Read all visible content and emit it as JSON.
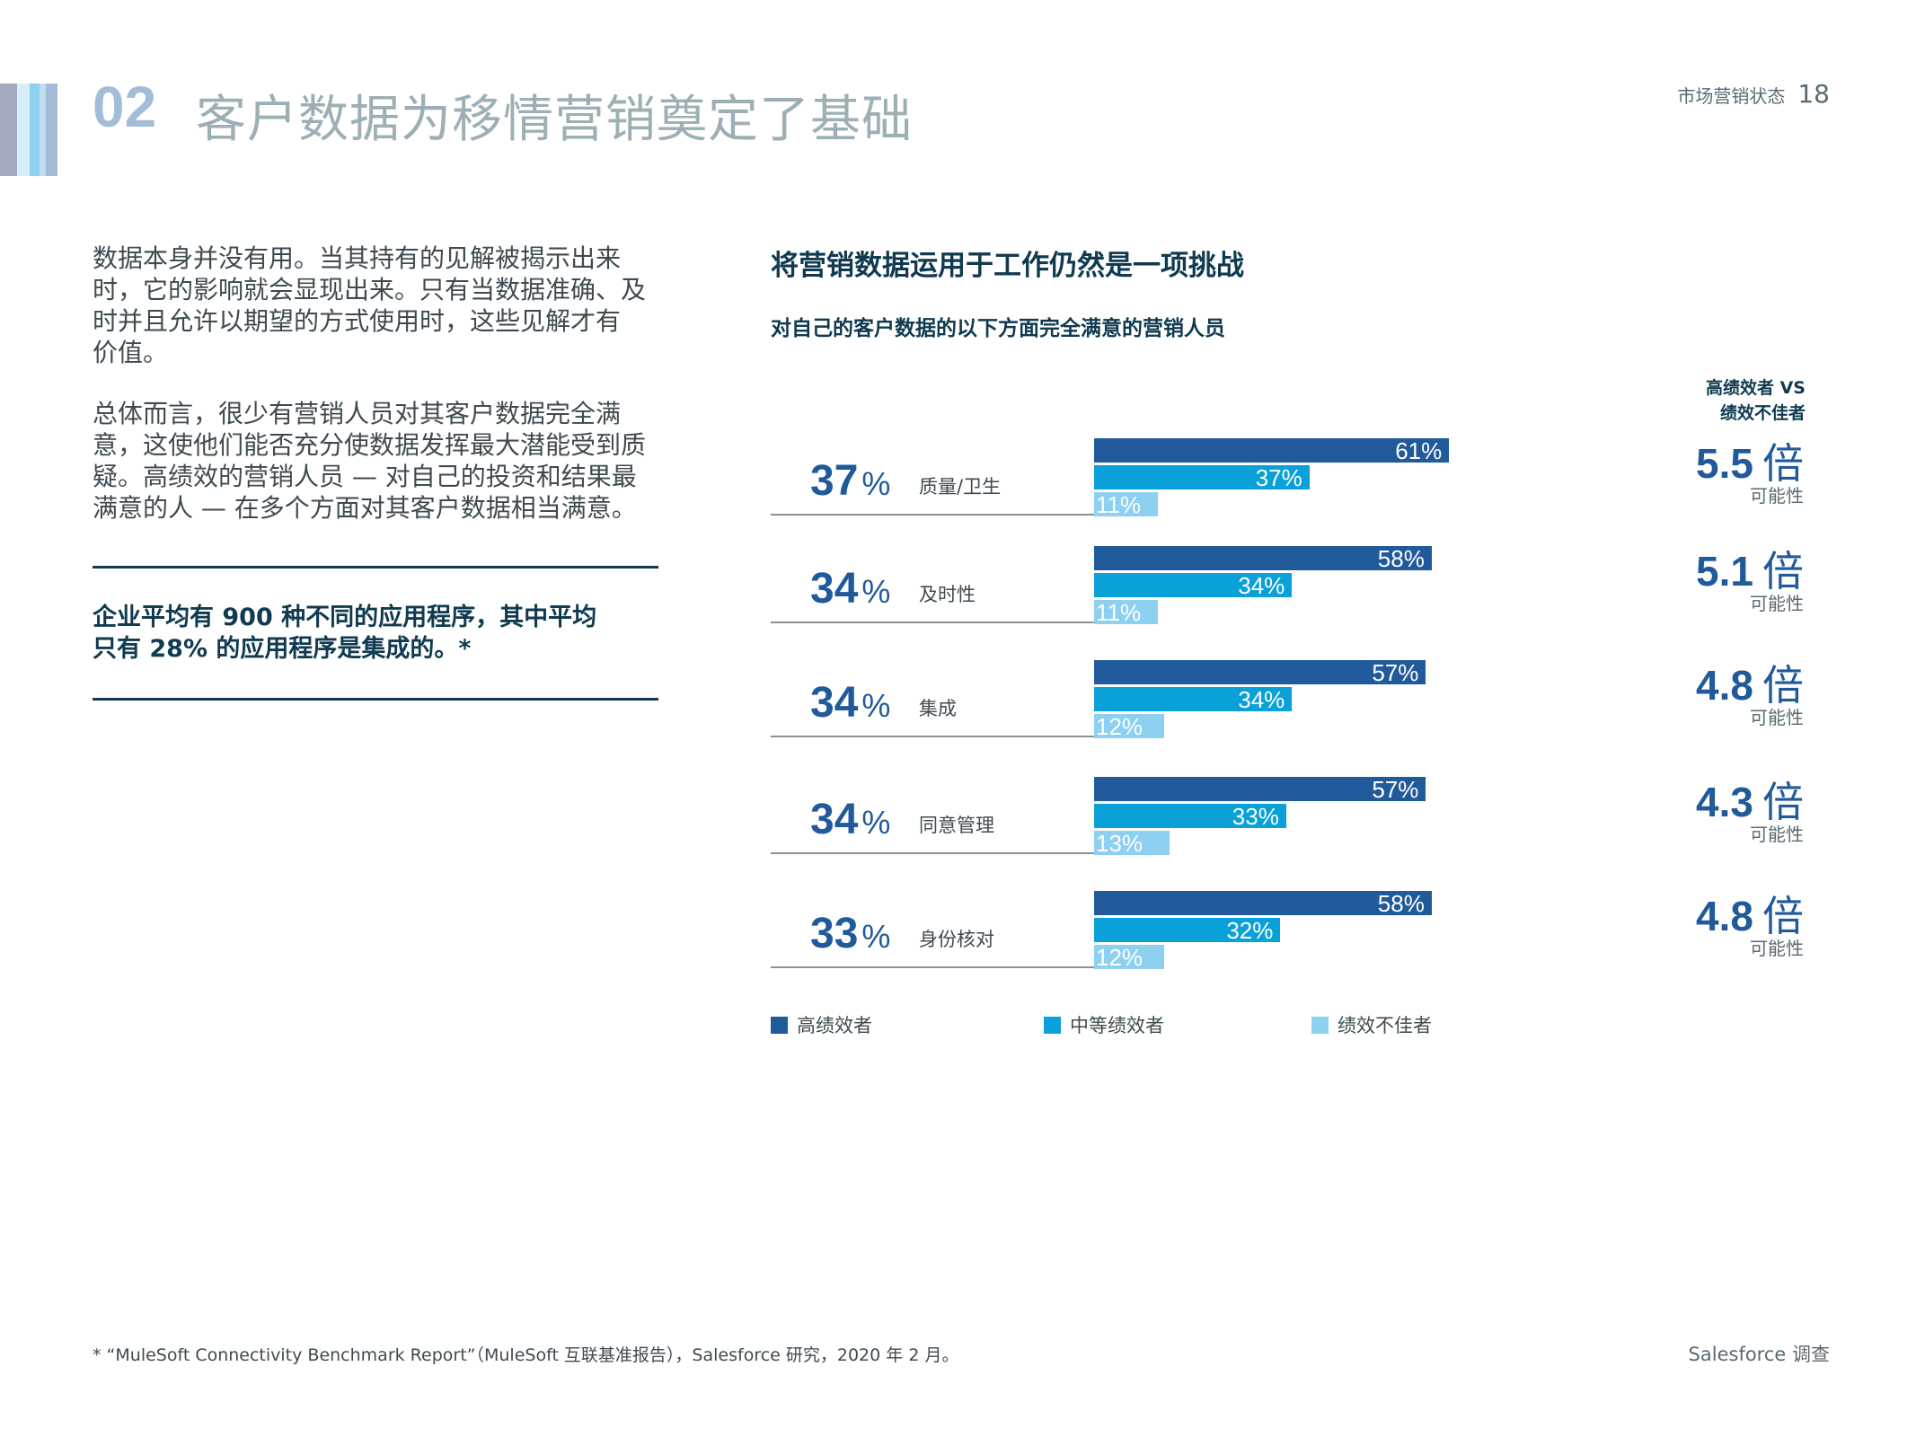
{
  "header": {
    "section_number": "02",
    "title": "客户数据为移情营销奠定了基础",
    "report_name": "市场营销状态",
    "page_number": "18"
  },
  "body": {
    "paragraph1_lines": [
      "数据本身并没有用。当其持有的见解被揭示出来",
      "时，它的影响就会显现出来。只有当数据准确、及",
      "时并且允许以期望的方式使用时，这些见解才有",
      "价值。"
    ],
    "paragraph2_lines": [
      "总体而言，很少有营销人员对其客户数据完全满",
      "意，这使他们能否充分使数据发挥最大潜能受到质",
      "疑。高绩效的营销人员 — 对自己的投资和结果最",
      "满意的人 — 在多个方面对其客户数据相当满意。"
    ],
    "callout_lines": [
      "企业平均有 900 种不同的应用程序，其中平均",
      "只有 28% 的应用程序是集成的。*"
    ]
  },
  "chart_data": {
    "type": "bar",
    "orientation": "horizontal",
    "title": "将营销数据运用于工作仍然是一项挑战",
    "subtitle": "对自己的客户数据的以下方面完全满意的营销人员",
    "comparison_header_lines": [
      "高绩效者 VS",
      "绩效不佳者"
    ],
    "categories": [
      "质量/卫生",
      "及时性",
      "集成",
      "同意管理",
      "身份核对"
    ],
    "overall": [
      37,
      34,
      34,
      34,
      33
    ],
    "overall_unit": "%",
    "series": [
      {
        "name": "高绩效者",
        "color": "#215A9A",
        "values": [
          61,
          58,
          57,
          57,
          58
        ]
      },
      {
        "name": "中等绩效者",
        "color": "#0AA0D8",
        "values": [
          37,
          34,
          34,
          33,
          32
        ]
      },
      {
        "name": "绩效不佳者",
        "color": "#8DD0F0",
        "values": [
          11,
          11,
          12,
          13,
          12
        ]
      }
    ],
    "multipliers": [
      "5.5",
      "5.1",
      "4.8",
      "4.3",
      "4.8"
    ],
    "multiplier_unit": "倍",
    "multiplier_label": "可能性",
    "legend_position": "bottom",
    "grid": false
  },
  "footer": {
    "footnote": "* “MuleSoft Connectivity Benchmark Report”（MuleSoft 互联基准报告），Salesforce 研究，2020 年 2 月。",
    "source": "Salesforce 调查"
  }
}
